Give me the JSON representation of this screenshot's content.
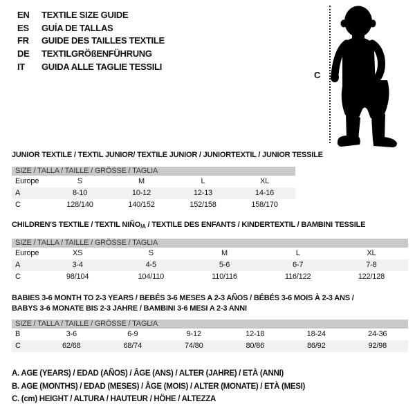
{
  "colors": {
    "header_bar": "#c9c9c9",
    "row_stripe": "#f1f1f1",
    "text": "#111111",
    "silhouette": "#000000"
  },
  "languages": [
    {
      "code": "EN",
      "title": "TEXTILE SIZE GUIDE"
    },
    {
      "code": "ES",
      "title": "GUÍA DE TALLAS"
    },
    {
      "code": "FR",
      "title": "GUIDE DES TAILLES TEXTILE"
    },
    {
      "code": "DE",
      "title": "TEXTILGRÖßENFÜHRUNG"
    },
    {
      "code": "IT",
      "title": "GUIDA ALLE TAGLIE TESSILI"
    }
  ],
  "figure": {
    "label": "C"
  },
  "tables": [
    {
      "title_lines": [
        [
          {
            "text": "JUNIOR TEXTILE / TEXTIL JUNIOR/ TEXTILE JUNIOR / JUNIORTEXTIL / JUNIOR TESSILE"
          }
        ]
      ],
      "size_header": "SIZE / TALLA / TAILLE / GRÖSSE / TAGLIA",
      "rows": [
        {
          "label": "Europe",
          "values": [
            "S",
            "M",
            "L",
            "XL"
          ],
          "shaded": false
        },
        {
          "label": "A",
          "values": [
            "8-10",
            "10-12",
            "12-13",
            "14-16"
          ],
          "shaded": true
        },
        {
          "label": "C",
          "values": [
            "128/140",
            "140/152",
            "152/158",
            "158/170"
          ],
          "shaded": false
        }
      ]
    },
    {
      "title_lines": [
        [
          {
            "text": "CHILDREN'S TEXTILE / TEXTIL NIÑO"
          },
          {
            "text": "/A",
            "sub": true
          },
          {
            "text": " / TEXTILE DES ENFANTS / KINDERTEXTIL / BAMBINI TESSILE"
          }
        ]
      ],
      "size_header": "SIZE / TALLA / TAILLE / GRÖSSE / TAGLIA",
      "rows": [
        {
          "label": "Europe",
          "values": [
            "XS",
            "S",
            "M",
            "L",
            "XL"
          ],
          "shaded": false
        },
        {
          "label": "A",
          "values": [
            "3-4",
            "4-5",
            "5-6",
            "6-7",
            "7-8"
          ],
          "shaded": true
        },
        {
          "label": "C",
          "values": [
            "98/104",
            "104/110",
            "110/116",
            "116/122",
            "122/128"
          ],
          "shaded": false
        }
      ]
    },
    {
      "title_lines": [
        [
          {
            "text": "BABIES 3-6 MONTH TO 2-3 YEARS / BEBÉS 3-6 MESES A 2-3 AÑOS / BÉBÉS 3-6 MOIS À 2-3 ANS /"
          }
        ],
        [
          {
            "text": "BABYS 3-6 MONATE BIS 2-3 JAHRE / BAMBINI 3-6 MESI A 2-3 ANNI"
          }
        ]
      ],
      "size_header": "SIZE / TALLA / TAILLE / GRÖSSE / TAGLIA",
      "rows": [
        {
          "label": "B",
          "values": [
            "3-6",
            "6-9",
            "9-12",
            "12-18",
            "18-24",
            "24-36"
          ],
          "shaded": false
        },
        {
          "label": "C",
          "values": [
            "62/68",
            "68/74",
            "74/80",
            "80/86",
            "86/92",
            "92/98"
          ],
          "shaded": true
        }
      ]
    }
  ],
  "notes": [
    "A. AGE (YEARS) / EDAD (AÑOS) / ÂGE (ANS) / ALTER (JAHRE) / ETÀ (ANNI)",
    "B. AGE (MONTHS) / EDAD (MESES) / ÂGE (MOIS) / ALTER (MONATE) / ETÀ (MESI)",
    "C. (cm) HEIGHT / ALTURA / HAUTEUR / HÖHE / ALTEZZA"
  ]
}
